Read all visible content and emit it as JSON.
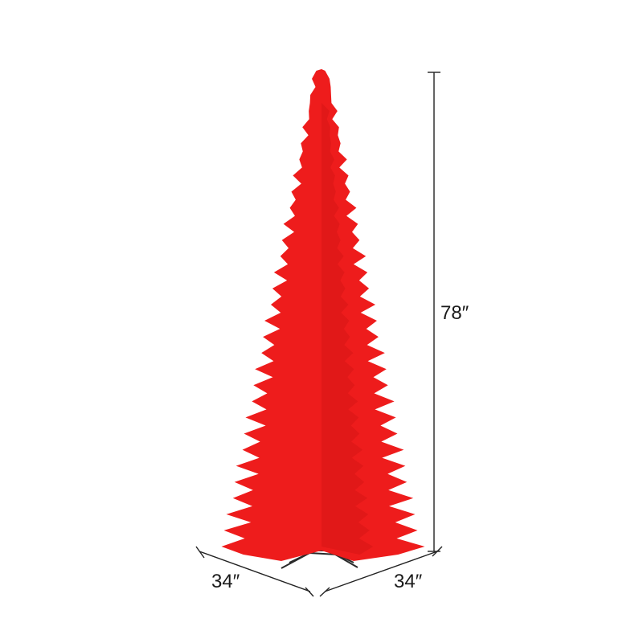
{
  "product": {
    "color": "#ee1c1c",
    "stand_color": "#2a2a2a"
  },
  "dimensions": {
    "height": "78″",
    "width": "34″",
    "depth": "34″"
  }
}
